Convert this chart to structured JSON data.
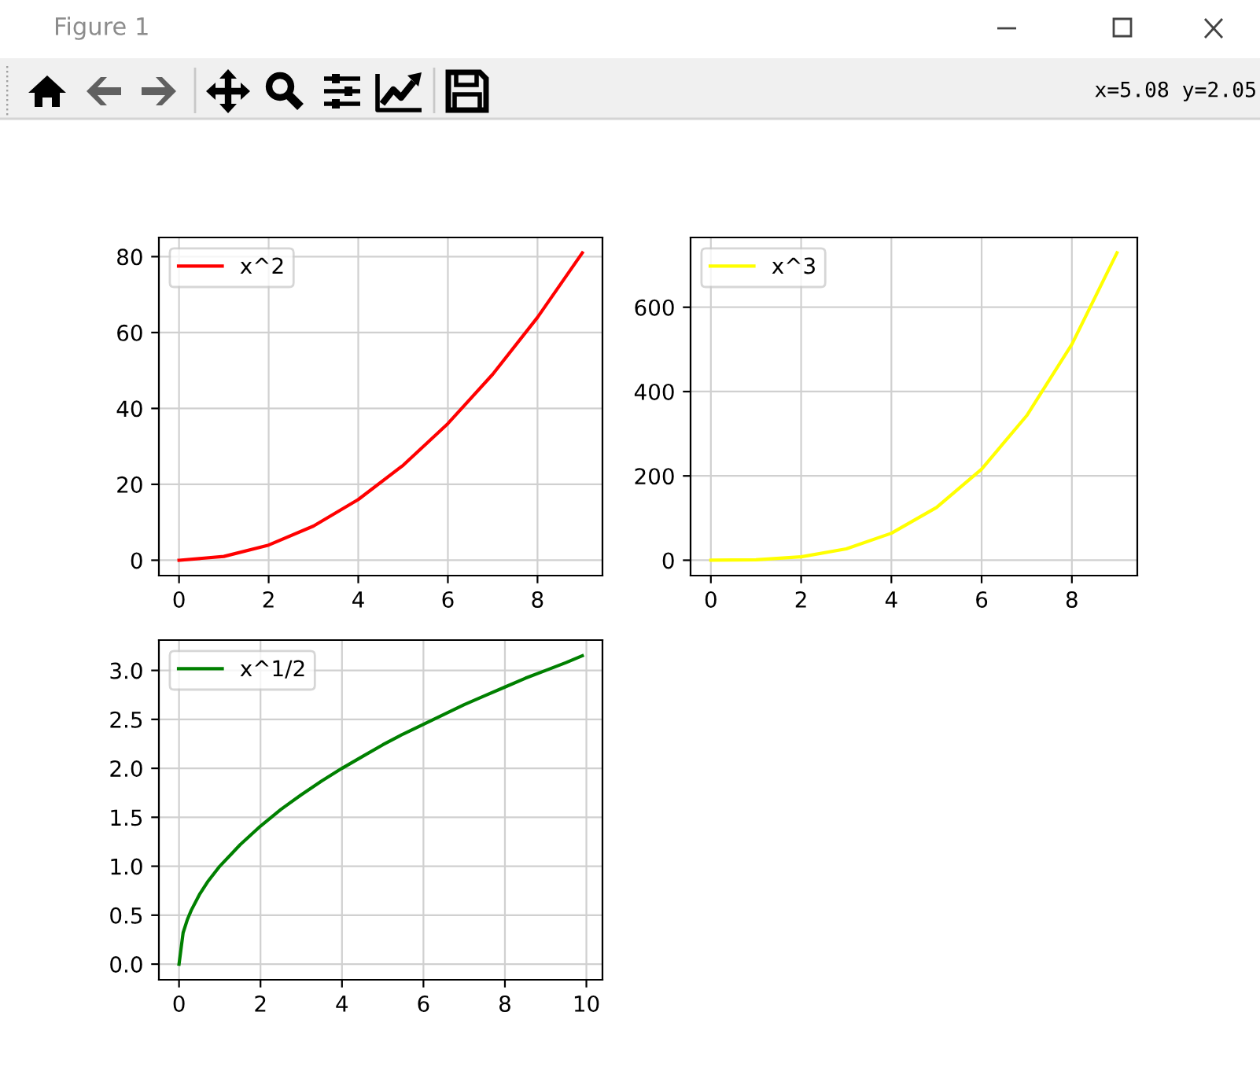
{
  "chart_data": [
    {
      "type": "other",
      "title": "Figure 1",
      "annotations": [
        "x=5.08 y=2.05"
      ]
    },
    {
      "type": "line",
      "x": [
        0,
        1,
        2,
        3,
        4,
        5,
        6,
        7,
        8,
        9
      ],
      "series": [
        {
          "name": "x^2",
          "color": "#ff0000",
          "values": [
            0,
            1,
            4,
            9,
            16,
            25,
            36,
            49,
            64,
            81
          ]
        }
      ],
      "xlim": [
        -0.45,
        9.45
      ],
      "ylim": [
        -4.05,
        85.05
      ],
      "xticks": [
        0,
        2,
        4,
        6,
        8
      ],
      "yticks": [
        0,
        20,
        40,
        60,
        80
      ],
      "grid": true,
      "legend": "top left"
    },
    {
      "type": "line",
      "x": [
        0,
        1,
        2,
        3,
        4,
        5,
        6,
        7,
        8,
        9
      ],
      "series": [
        {
          "name": "x^3",
          "color": "#ffff00",
          "values": [
            0,
            1,
            8,
            27,
            64,
            125,
            216,
            343,
            512,
            729
          ]
        }
      ],
      "xlim": [
        -0.45,
        9.45
      ],
      "ylim": [
        -36.45,
        765.45
      ],
      "xticks": [
        0,
        2,
        4,
        6,
        8
      ],
      "yticks": [
        0,
        200,
        400,
        600
      ],
      "grid": true,
      "legend": "top left"
    },
    {
      "type": "line",
      "x": [
        0,
        0.1,
        0.2,
        0.3,
        0.5,
        0.7,
        1,
        1.5,
        2,
        2.5,
        3,
        3.5,
        4,
        4.5,
        5,
        5.5,
        6,
        6.5,
        7,
        7.5,
        8,
        8.5,
        9,
        9.5,
        9.9
      ],
      "series": [
        {
          "name": "x^1/2",
          "color": "#008000",
          "values": [
            0,
            0.32,
            0.45,
            0.55,
            0.71,
            0.84,
            1.0,
            1.22,
            1.41,
            1.58,
            1.73,
            1.87,
            2.0,
            2.12,
            2.24,
            2.35,
            2.45,
            2.55,
            2.65,
            2.74,
            2.83,
            2.92,
            3.0,
            3.08,
            3.15
          ]
        }
      ],
      "xlim": [
        -0.495,
        10.395
      ],
      "ylim": [
        -0.16,
        3.31
      ],
      "xticks": [
        0,
        2,
        4,
        6,
        8,
        10
      ],
      "yticks": [
        {
          "value": 0,
          "label": "0.0"
        },
        0.5,
        {
          "value": 1,
          "label": "1.0"
        },
        1.5,
        {
          "value": 2,
          "label": "2.0"
        },
        2.5,
        {
          "value": 3,
          "label": "3.0"
        }
      ],
      "grid": true,
      "legend": "top left"
    }
  ]
}
